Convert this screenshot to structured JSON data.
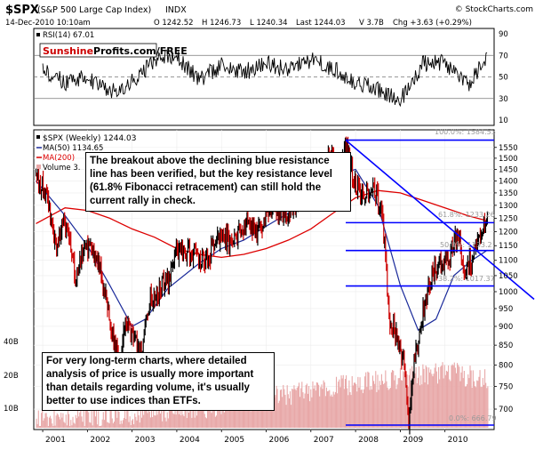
{
  "header": {
    "symbol": "$SPX",
    "name": "(S&P 500 Large Cap Index)",
    "exchange": "INDX",
    "date": "14-Dec-2010 10:10am",
    "open": "O 1242.52",
    "high": "H 1246.73",
    "low": "L 1240.34",
    "last": "Last 1244.03",
    "volume": "V 3.7B",
    "change": "Chg +3.63 (+0.29%)",
    "credit": "© StockCharts.com"
  },
  "rsi_panel": {
    "label": "RSI(14) 67.01",
    "watermark_red": "Sunshine",
    "watermark_black": "Profits.com/FREE",
    "ticks": [
      "90",
      "70",
      "50",
      "30",
      "10"
    ]
  },
  "price_panel": {
    "legend": {
      "weekly": "$SPX (Weekly) 1244.03",
      "ma50": "MA(50) 1134.65",
      "ma200": "MA(200)",
      "volume": "Volume 3."
    },
    "fib_labels": {
      "level_100": "100.0%: 1584.53",
      "level_618": "61.8%: 1233.26",
      "level_500": "50.0%: 1133.2",
      "level_382": "38.2%: 1017.37",
      "level_0": "0.0%: 666.79"
    },
    "volume_ticks": [
      "40B",
      "20B",
      "10B"
    ]
  },
  "annotations": {
    "top": "The breakout above the declining blue resistance line has been verified, but the key resistance level (61.8% Fibonacci retracement) can still hold the current rally in check.",
    "bottom": "For very long-term charts, where detailed analysis of price is usually more important than details regarding volume, it's usually better to use indices than ETFs."
  },
  "colors": {
    "price": "#000000",
    "up_bar": "#000000",
    "down_bar": "#cc0000",
    "ma50": "#1a2a9a",
    "ma200": "#dd0000",
    "resistance": "#0000ff",
    "volume": "#e8a8a8",
    "rsi": "#000000",
    "watermark": "#cc0000"
  },
  "chart_data": [
    {
      "type": "line",
      "title": "RSI(14) 67.01",
      "ylim": [
        10,
        90
      ],
      "yticks": [
        90,
        70,
        50,
        30,
        10
      ],
      "reference_lines": [
        70,
        50,
        30
      ],
      "series": [
        {
          "name": "RSI(14)",
          "x": [
            2001.0,
            2001.5,
            2002.0,
            2002.5,
            2003.0,
            2003.5,
            2004.0,
            2004.5,
            2005.0,
            2005.5,
            2006.0,
            2006.5,
            2007.0,
            2007.5,
            2008.0,
            2008.5,
            2009.0,
            2009.5,
            2010.0,
            2010.5,
            2010.95
          ],
          "values": [
            55,
            45,
            50,
            35,
            45,
            66,
            68,
            48,
            60,
            54,
            63,
            56,
            66,
            58,
            45,
            38,
            28,
            62,
            64,
            42,
            67
          ]
        }
      ]
    },
    {
      "type": "line",
      "title": "$SPX (Weekly) 1244.03",
      "y_scale": "log",
      "ylim": [
        665,
        1600
      ],
      "yticks": [
        1550,
        1500,
        1450,
        1400,
        1350,
        1300,
        1250,
        1200,
        1150,
        1100,
        1050,
        1000,
        950,
        900,
        850,
        800,
        750,
        700
      ],
      "xlim": [
        2000.8,
        2011.1
      ],
      "xticks": [
        2001,
        2002,
        2003,
        2004,
        2005,
        2006,
        2007,
        2008,
        2009,
        2010
      ],
      "series": [
        {
          "name": "$SPX (Weekly)",
          "x": [
            2000.85,
            2001.0,
            2001.15,
            2001.3,
            2001.45,
            2001.6,
            2001.72,
            2001.85,
            2002.0,
            2002.2,
            2002.4,
            2002.55,
            2002.75,
            2002.85,
            2003.0,
            2003.2,
            2003.4,
            2003.6,
            2003.8,
            2004.0,
            2004.2,
            2004.4,
            2004.6,
            2004.8,
            2005.0,
            2005.2,
            2005.4,
            2005.6,
            2005.8,
            2006.0,
            2006.2,
            2006.45,
            2006.6,
            2006.8,
            2007.0,
            2007.2,
            2007.45,
            2007.62,
            2007.78,
            2008.0,
            2008.2,
            2008.4,
            2008.6,
            2008.75,
            2008.9,
            2009.1,
            2009.19,
            2009.3,
            2009.5,
            2009.7,
            2009.9,
            2010.1,
            2010.3,
            2010.45,
            2010.6,
            2010.75,
            2010.95
          ],
          "values": [
            1420,
            1370,
            1280,
            1150,
            1250,
            1190,
            1040,
            1100,
            1140,
            1120,
            1000,
            880,
            800,
            910,
            880,
            820,
            980,
            1000,
            1040,
            1120,
            1130,
            1120,
            1090,
            1130,
            1200,
            1160,
            1190,
            1230,
            1200,
            1270,
            1300,
            1270,
            1290,
            1360,
            1420,
            1450,
            1510,
            1420,
            1560,
            1390,
            1330,
            1380,
            1260,
            920,
            880,
            800,
            680,
            800,
            930,
            1060,
            1100,
            1110,
            1200,
            1050,
            1100,
            1180,
            1244
          ]
        },
        {
          "name": "MA(50) 1134.65",
          "x": [
            2000.85,
            2001.5,
            2002.0,
            2002.5,
            2003.0,
            2003.3,
            2003.8,
            2004.5,
            2005.0,
            2005.5,
            2006.0,
            2006.5,
            2007.0,
            2007.5,
            2008.0,
            2008.5,
            2009.0,
            2009.4,
            2009.8,
            2010.2,
            2010.6,
            2010.95
          ],
          "values": [
            1400,
            1260,
            1150,
            1020,
            900,
            920,
            1010,
            1090,
            1140,
            1170,
            1220,
            1270,
            1340,
            1420,
            1450,
            1300,
            1020,
            890,
            920,
            1050,
            1100,
            1134.65
          ]
        },
        {
          "name": "MA(200)",
          "x": [
            2000.85,
            2001.5,
            2002.0,
            2002.5,
            2003.0,
            2003.5,
            2004.0,
            2004.5,
            2005.0,
            2005.5,
            2006.0,
            2006.5,
            2007.0,
            2007.5,
            2008.0,
            2008.5,
            2009.0,
            2009.5,
            2010.0,
            2010.5,
            2010.95
          ],
          "values": [
            1230,
            1290,
            1280,
            1250,
            1210,
            1180,
            1140,
            1120,
            1110,
            1120,
            1140,
            1170,
            1210,
            1270,
            1330,
            1360,
            1350,
            1320,
            1290,
            1260,
            1240
          ]
        }
      ],
      "fibonacci_levels": [
        {
          "label": "100.0%: 1584.53",
          "value": 1584.53
        },
        {
          "label": "61.8%: 1233.26",
          "value": 1233.26
        },
        {
          "label": "50.0%: 1133.2",
          "value": 1133.2
        },
        {
          "label": "38.2%: 1017.37",
          "value": 1017.37
        },
        {
          "label": "0.0%: 666.79",
          "value": 666.79
        }
      ],
      "trendline": {
        "from": [
          2007.78,
          1584.53
        ],
        "to": [
          2011.1,
          1015
        ]
      }
    },
    {
      "type": "bar",
      "title": "Volume",
      "y_scale": "log",
      "yticks_labels": [
        "40B",
        "20B",
        "10B"
      ],
      "x_range": [
        2000.85,
        2010.95
      ],
      "approx_values_billions": {
        "2001": 6.0,
        "2003": 7.0,
        "2005": 8.5,
        "2007": 12.0,
        "2008.8": 24.0,
        "2009.5": 20.0,
        "2010": 18.0,
        "2010.95": 15.0
      }
    }
  ]
}
